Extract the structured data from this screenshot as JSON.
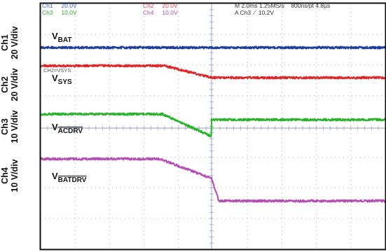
{
  "channel_scales": [
    {
      "channel": "Ch1",
      "scale": "20 V/div"
    },
    {
      "channel": "Ch2",
      "scale": "20 V/div"
    },
    {
      "channel": "Ch3",
      "scale": "10 V/div"
    },
    {
      "channel": "Ch4",
      "scale": "10 V/div"
    }
  ],
  "hud": {
    "ch1_label": "Ch1",
    "ch1_val": "20.0V",
    "ch2_label": "Ch2",
    "ch2_val": "20.0V",
    "ch3_label": "Ch3",
    "ch3_val": "10.0V",
    "ch4_label": "Ch4",
    "ch4_val": "10.0V",
    "timebase": "M 2.0ms 1.25MS/s",
    "record": "800ns/pt 4.8µs",
    "trigger": "A Ch3 ⟋ 10.2V",
    "ch2_marker": "CH2=VSYS"
  },
  "signals": [
    {
      "base": "V",
      "sub": "BAT",
      "overline": false,
      "color": "#1e3c9c"
    },
    {
      "base": "V",
      "sub": "SYS",
      "overline": false,
      "color": "#e02424"
    },
    {
      "base": "V",
      "sub": "ACDRV",
      "overline": true,
      "color": "#28b428"
    },
    {
      "base": "V",
      "sub": "BATDRV",
      "overline": true,
      "color": "#b44cb4"
    }
  ],
  "colors": {
    "ch1": "#1e3c9c",
    "ch2": "#e02424",
    "ch3": "#28b428",
    "ch4": "#b44cb4",
    "hud_ch1": "#3a60d0",
    "hud_ch2": "#e0405a",
    "hud_ch3": "#2ea82e",
    "hud_ch4": "#b050b0",
    "grid": "#aab0c8",
    "frame": "#111111"
  }
}
